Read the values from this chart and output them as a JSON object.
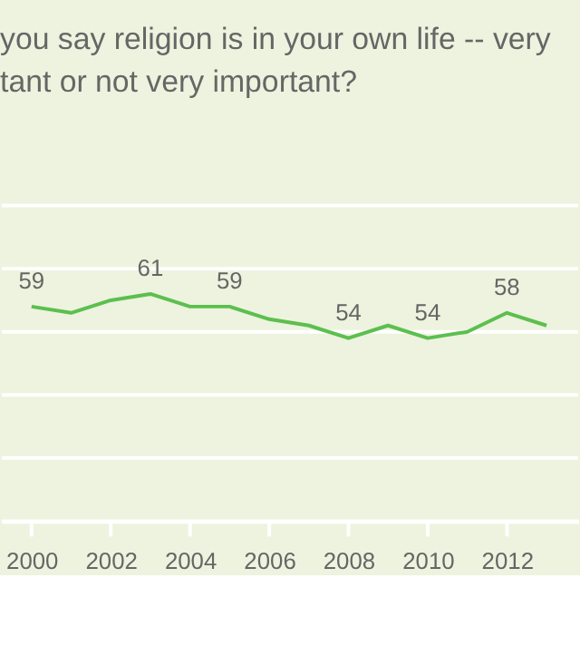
{
  "chart_data": {
    "type": "line",
    "title": [
      "you say religion is in your own life -- very",
      "tant or not very important?"
    ],
    "x": [
      2000,
      2001,
      2002,
      2003,
      2004,
      2005,
      2006,
      2007,
      2008,
      2009,
      2010,
      2011,
      2012,
      2013
    ],
    "series": [
      {
        "color": "#5cbf4f",
        "values": [
          59,
          58,
          60,
          61,
          59,
          59,
          57,
          56,
          54,
          56,
          54,
          55,
          58,
          56
        ],
        "value_labels": [
          "59",
          null,
          null,
          "61",
          null,
          "59",
          null,
          null,
          "54",
          null,
          "54",
          null,
          "58",
          null
        ]
      }
    ],
    "xlim": [
      1999.25,
      2013.8
    ],
    "xticks": [
      2000,
      2002,
      2004,
      2006,
      2008,
      2010,
      2012
    ],
    "ylim": [
      25,
      75
    ],
    "yticks": [
      {
        "value": 25,
        "label": null
      },
      {
        "value": 35,
        "label": null
      },
      {
        "value": 45,
        "label": null
      },
      {
        "value": 55,
        "label": null
      },
      {
        "value": 65,
        "label": null
      },
      {
        "value": 75,
        "label": null
      }
    ],
    "tick_labels": "x",
    "grid": "y",
    "marker": "none",
    "line_style": "solid"
  }
}
